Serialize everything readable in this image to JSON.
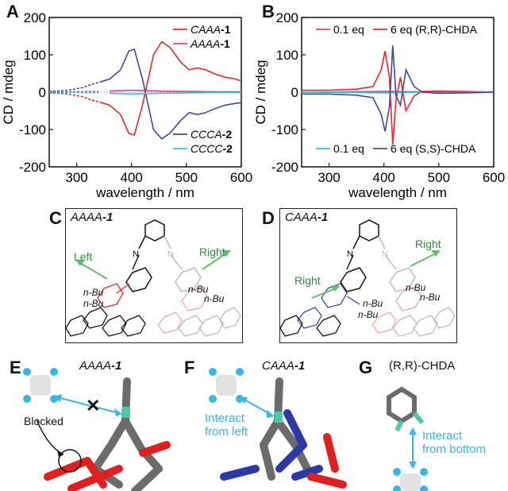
{
  "panels": {
    "A": "A",
    "B": "B",
    "C": "C",
    "D": "D",
    "E": "E",
    "F": "F",
    "G": "G"
  },
  "chart_data": [
    {
      "type": "line",
      "panel": "A",
      "xlabel": "wavelength / nm",
      "ylabel": "CD / mdeg",
      "xlim": [
        250,
        600
      ],
      "ylim": [
        -200,
        200
      ],
      "xticks": [
        300,
        400,
        500,
        600
      ],
      "yticks": [
        -200,
        -100,
        0,
        100,
        200
      ],
      "series": [
        {
          "name": "CAAA-1",
          "label_main": "CAAA",
          "label_num": "-1",
          "color": "#e8262b",
          "x": [
            250,
            280,
            310,
            330,
            345,
            360,
            380,
            395,
            405,
            420,
            440,
            455,
            470,
            490,
            505,
            520,
            535,
            550,
            570,
            590,
            600
          ],
          "y": [
            -2,
            -4,
            -12,
            -22,
            -28,
            -35,
            -60,
            -110,
            -115,
            -35,
            100,
            135,
            120,
            80,
            60,
            65,
            60,
            50,
            40,
            35,
            30
          ]
        },
        {
          "name": "AAAA-1",
          "label_main": "AAAA",
          "label_num": "-1",
          "color": "#e0409a",
          "x": [
            250,
            300,
            340,
            360,
            400,
            450,
            500,
            550,
            600
          ],
          "y": [
            0,
            1,
            2,
            3,
            5,
            3,
            2,
            1,
            1
          ]
        },
        {
          "name": "CCCA-2",
          "label_main": "CCCA",
          "label_num": "-2",
          "color": "#3b4aa0",
          "x": [
            250,
            280,
            310,
            330,
            345,
            360,
            380,
            395,
            405,
            420,
            440,
            455,
            470,
            490,
            505,
            520,
            535,
            550,
            570,
            590,
            600
          ],
          "y": [
            2,
            4,
            12,
            22,
            28,
            35,
            60,
            110,
            115,
            35,
            -100,
            -125,
            -110,
            -75,
            -55,
            -60,
            -55,
            -45,
            -35,
            -30,
            -28
          ]
        },
        {
          "name": "CCCC-2",
          "label_main": "CCCC",
          "label_num": "-2",
          "color": "#35c4d6",
          "x": [
            250,
            300,
            340,
            360,
            400,
            450,
            500,
            550,
            600
          ],
          "y": [
            0,
            -1,
            -2,
            -3,
            -5,
            -3,
            -2,
            -1,
            -1
          ]
        }
      ]
    },
    {
      "type": "line",
      "panel": "B",
      "xlabel": "wavelength / nm",
      "ylabel": "CD / mdeg",
      "xlim": [
        250,
        600
      ],
      "ylim": [
        -200,
        200
      ],
      "xticks": [
        300,
        400,
        500,
        600
      ],
      "yticks": [
        -200,
        -100,
        0,
        100,
        200
      ],
      "series": [
        {
          "name": "0.1 eq (R,R)",
          "label": "0.1 eq",
          "color": "#e0409a",
          "x": [
            250,
            350,
            400,
            450,
            600
          ],
          "y": [
            0,
            1,
            2,
            1,
            0
          ]
        },
        {
          "name": "6 eq (R,R)-CHDA",
          "label": "6 eq (R,R)-CHDA",
          "color": "#e8262b",
          "x": [
            250,
            300,
            350,
            380,
            395,
            402,
            410,
            416,
            422,
            430,
            440,
            455,
            470,
            500,
            550,
            600
          ],
          "y": [
            5,
            5,
            8,
            15,
            60,
            110,
            40,
            -140,
            -20,
            40,
            -50,
            -10,
            2,
            3,
            2,
            0
          ]
        },
        {
          "name": "0.1 eq (S,S)",
          "label": "0.1 eq",
          "color": "#35c4d6",
          "x": [
            250,
            350,
            400,
            450,
            600
          ],
          "y": [
            0,
            -1,
            -2,
            -1,
            0
          ]
        },
        {
          "name": "6 eq (S,S)-CHDA",
          "label": "6 eq (S,S)-CHDA",
          "color": "#3b4aa0",
          "x": [
            250,
            300,
            350,
            380,
            395,
            402,
            410,
            416,
            422,
            430,
            440,
            455,
            470,
            500,
            550,
            600
          ],
          "y": [
            -5,
            -5,
            -8,
            -15,
            -60,
            -105,
            -40,
            125,
            -10,
            -35,
            60,
            15,
            0,
            -3,
            -2,
            0
          ]
        }
      ]
    }
  ],
  "structures": {
    "C_title": "AAAA-1",
    "C_title_main": "AAAA",
    "C_title_num": "-1",
    "C_left": "Left",
    "C_right": "Right",
    "C_nbu1": "n-Bu",
    "C_nbu2": "n-Bu",
    "C_nbu3": "n-Bu",
    "C_nbu4": "n-Bu",
    "D_title_main": "CAAA",
    "D_title_num": "-1",
    "D_right1": "Right",
    "D_right2": "Right",
    "D_nbu1": "n-Bu",
    "D_nbu2": "n-Bu",
    "D_nbu3": "n-Bu",
    "D_nbu4": "n-Bu",
    "C_N": "N",
    "D_N": "N"
  },
  "models": {
    "E_title_main": "AAAA",
    "E_title_num": "-1",
    "E_blocked": "Blocked",
    "F_title_main": "CAAA",
    "F_title_num": "-1",
    "F_interact": "Interact",
    "F_interact2": "from left",
    "G_title": "(R,R)-CHDA",
    "G_interact": "Interact",
    "G_interact2": "from bottom"
  }
}
